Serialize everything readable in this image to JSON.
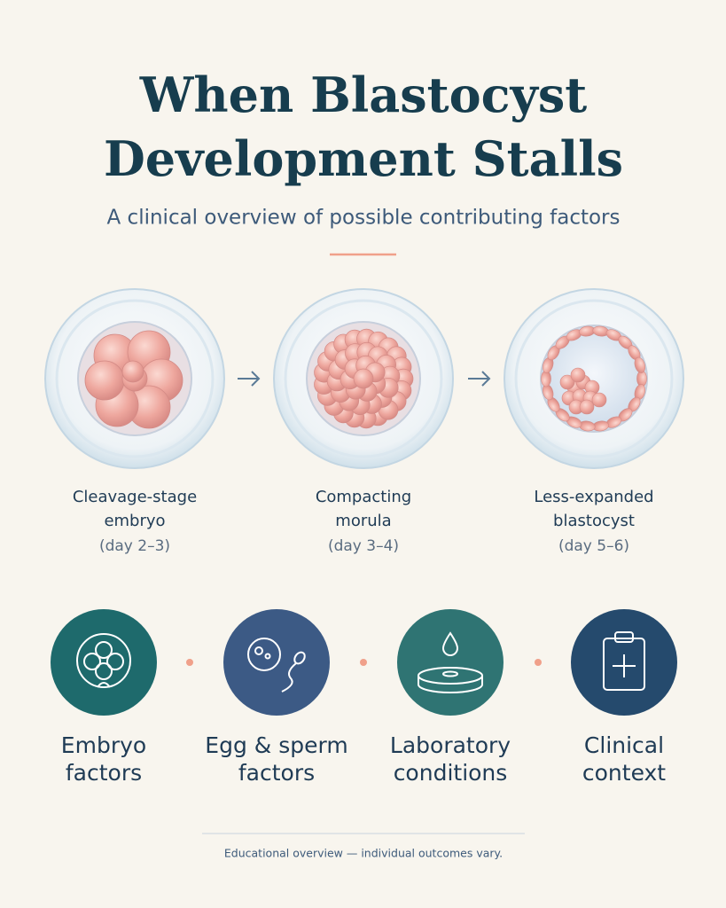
{
  "header": {
    "title_lines": [
      "When Blastocyst",
      "Development Stalls"
    ],
    "subtitle": "A clinical overview of possible contributing factors"
  },
  "stages": [
    {
      "label_lines": [
        "Cleavage-stage",
        "embryo"
      ],
      "days": "(day 2–3)"
    },
    {
      "label_lines": [
        "Compacting",
        "morula"
      ],
      "days": "(day 3–4)"
    },
    {
      "label_lines": [
        "Less-expanded",
        "blastocyst"
      ],
      "days": "(day 5–6)"
    }
  ],
  "factors": [
    {
      "label_lines": [
        "Embryo",
        "factors"
      ]
    },
    {
      "label_lines": [
        "Egg & sperm",
        "factors"
      ]
    },
    {
      "label_lines": [
        "Laboratory",
        "conditions"
      ]
    },
    {
      "label_lines": [
        "Clinical",
        "context"
      ]
    }
  ],
  "footer": "Educational overview — individual outcomes vary."
}
